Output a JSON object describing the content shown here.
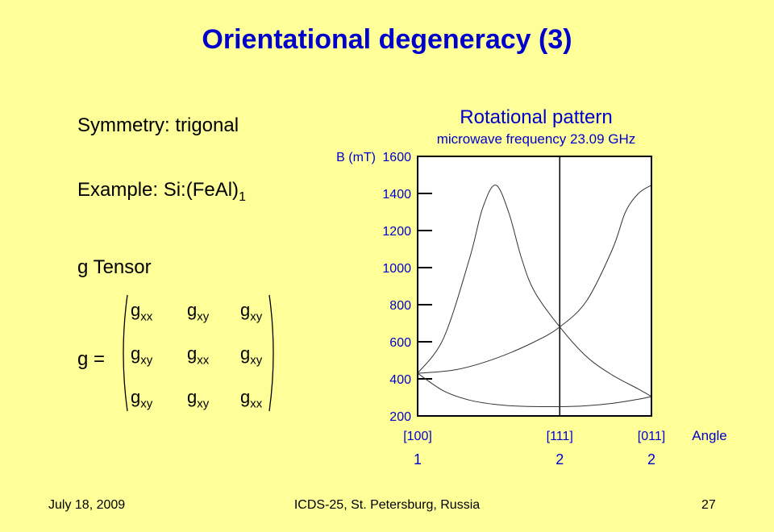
{
  "slide": {
    "title": "Orientational degeneracy (3)",
    "symmetry": "Symmetry: trigonal",
    "example_text": "Example: Si:(FeAl)",
    "example_sub": "1",
    "g_tensor": "g Tensor",
    "g_eq": "g =",
    "matrix": [
      [
        {
          "base": "g",
          "sub": "xx"
        },
        {
          "base": "g",
          "sub": "xy"
        },
        {
          "base": "g",
          "sub": "xy"
        }
      ],
      [
        {
          "base": "g",
          "sub": "xy"
        },
        {
          "base": "g",
          "sub": "xx"
        },
        {
          "base": "g",
          "sub": "xy"
        }
      ],
      [
        {
          "base": "g",
          "sub": "xy"
        },
        {
          "base": "g",
          "sub": "xy"
        },
        {
          "base": "g",
          "sub": "xx"
        }
      ]
    ]
  },
  "chart_data": {
    "type": "line",
    "title": "Rotational pattern",
    "subtitle": "microwave frequency 23.09 GHz",
    "ylabel": "B (mT)",
    "xlabel": "Angle",
    "ylim": [
      200,
      1600
    ],
    "yticks": [
      1600,
      1400,
      1200,
      1000,
      800,
      600,
      400,
      200
    ],
    "xlim": [
      0,
      90
    ],
    "xticks": [
      {
        "x": 0,
        "label": "[100]",
        "multiplicity": "1"
      },
      {
        "x": 54.7,
        "label": "[111]",
        "multiplicity": "2"
      },
      {
        "x": 90,
        "label": "[011]",
        "multiplicity": "2"
      }
    ],
    "series": [
      {
        "x": [
          0,
          10,
          20,
          25,
          30,
          35,
          40,
          45,
          54.7,
          65,
          75,
          85,
          90
        ],
        "values": [
          430,
          620,
          1050,
          1320,
          1445,
          1300,
          1050,
          870,
          680,
          520,
          420,
          345,
          305
        ]
      },
      {
        "x": [
          0,
          15,
          30,
          45,
          54.7,
          65,
          75,
          80,
          85,
          90
        ],
        "values": [
          430,
          450,
          510,
          600,
          680,
          820,
          1100,
          1300,
          1400,
          1445
        ]
      },
      {
        "x": [
          0,
          10,
          20,
          30,
          40,
          54.7,
          65,
          75,
          85,
          90
        ],
        "values": [
          430,
          335,
          285,
          262,
          252,
          250,
          255,
          268,
          290,
          305
        ]
      }
    ],
    "vline_x": 54.7
  },
  "footer": {
    "date": "July 18, 2009",
    "conference": "ICDS-25, St. Petersburg, Russia",
    "page": "27"
  }
}
